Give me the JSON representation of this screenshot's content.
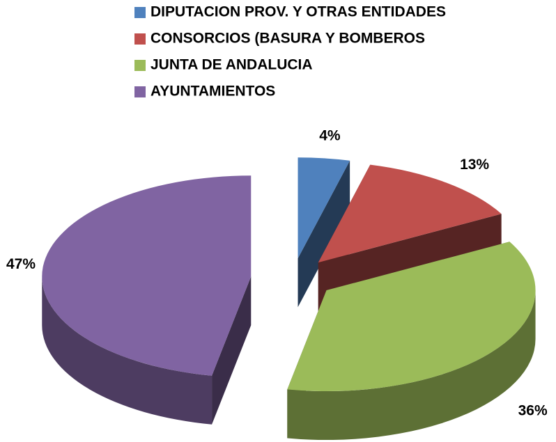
{
  "chart_data": {
    "type": "pie",
    "categories": [
      "DIPUTACION PROV. Y OTRAS ENTIDADES",
      "CONSORCIOS (BASURA Y BOMBEROS",
      "JUNTA DE ANDALUCIA",
      "AYUNTAMIENTOS"
    ],
    "values": [
      4,
      13,
      36,
      47
    ],
    "value_labels": [
      "4%",
      "13%",
      "36%",
      "47%"
    ],
    "colors": [
      "#4f81bd",
      "#c0504d",
      "#9bbb59",
      "#8064a2"
    ],
    "legend": "top"
  }
}
